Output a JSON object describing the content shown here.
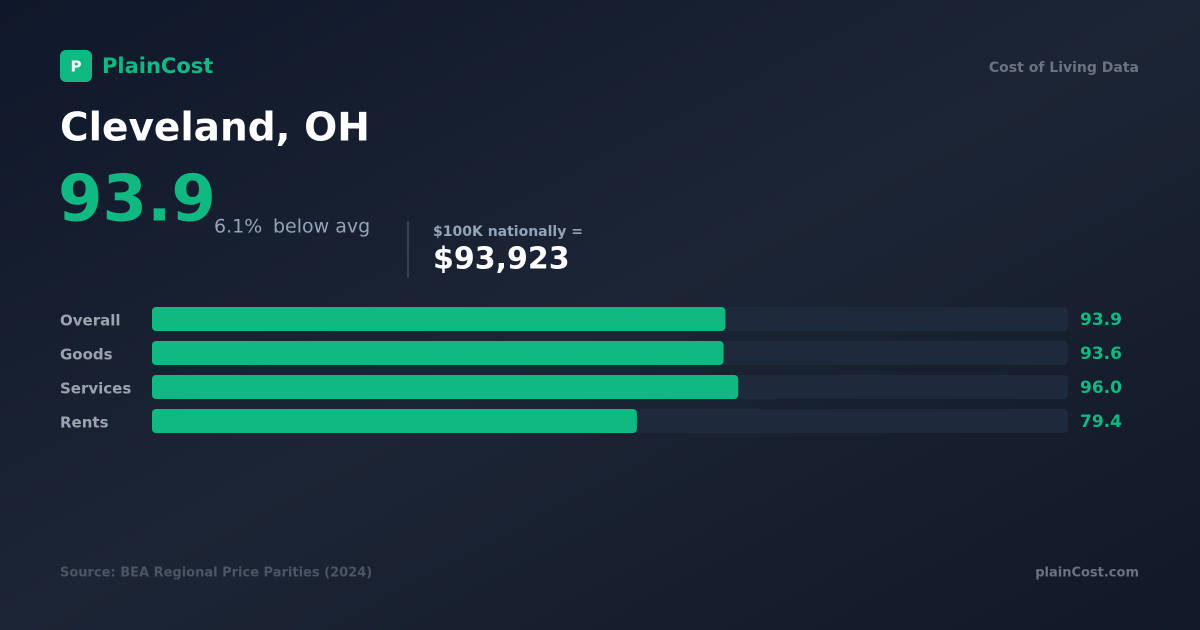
{
  "header": {
    "logo_letter": "P",
    "brand": "PlainCost",
    "tagline": "Cost of Living Data"
  },
  "city": "Cleveland, OH",
  "index": 93.9,
  "diff": "6.1%",
  "diff_label": "below avg",
  "equiv_label": "$100K nationally =",
  "equiv_value": "$93,923",
  "chart_data": {
    "type": "bar",
    "orientation": "horizontal",
    "categories": [
      "Overall",
      "Goods",
      "Services",
      "Rents"
    ],
    "values": [
      93.9,
      93.6,
      96.0,
      79.4
    ],
    "value_labels": [
      "93.9",
      "93.6",
      "96.0",
      "79.4"
    ],
    "xlim": [
      0,
      150
    ],
    "color": "#10b981",
    "track_color": "#1e293b"
  },
  "footer": {
    "source": "Source: BEA Regional Price Parities (2024)",
    "site": "plainCost.com"
  }
}
